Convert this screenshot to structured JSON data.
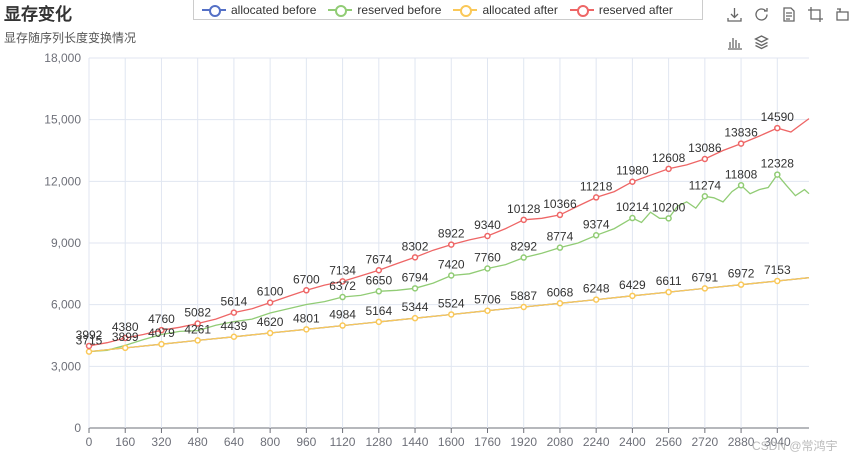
{
  "header": {
    "title": "显存变化",
    "subtitle": "显存随序列长度变换情况"
  },
  "toolbox": {
    "row1": [
      {
        "name": "download-icon"
      },
      {
        "name": "refresh-icon"
      },
      {
        "name": "data-view-icon"
      },
      {
        "name": "zoom-icon"
      },
      {
        "name": "zoom-reset-icon"
      }
    ],
    "row2": [
      {
        "name": "bar-chart-icon"
      },
      {
        "name": "stack-icon"
      }
    ]
  },
  "watermark": "CSDN @常鸿宇",
  "chart_data": {
    "type": "line",
    "xlim": [
      0,
      3180
    ],
    "ylim": [
      0,
      18000
    ],
    "xticks": [
      0,
      160,
      320,
      480,
      640,
      800,
      960,
      1120,
      1280,
      1440,
      1600,
      1760,
      1920,
      2080,
      2240,
      2400,
      2560,
      2720,
      2880,
      3040
    ],
    "xtick_labels": [
      "0",
      "160",
      "320",
      "480",
      "640",
      "800",
      "960",
      "1120",
      "1280",
      "1440",
      "1600",
      "1760",
      "1920",
      "2080",
      "2240",
      "2400",
      "2560",
      "2720",
      "2880",
      "3040"
    ],
    "yticks": [
      0,
      3000,
      6000,
      9000,
      12000,
      15000,
      18000
    ],
    "ytick_labels": [
      "0",
      "3,000",
      "6,000",
      "9,000",
      "12,000",
      "15,000",
      "18,000"
    ],
    "grid": true,
    "legend_position": "top",
    "series": [
      {
        "name": "allocated before",
        "color": "#5470c6",
        "points": [
          [
            0,
            3715
          ],
          [
            160,
            3899
          ],
          [
            320,
            4079
          ],
          [
            480,
            4261
          ],
          [
            640,
            4439
          ],
          [
            800,
            4620
          ],
          [
            960,
            4801
          ],
          [
            1120,
            4984
          ],
          [
            1280,
            5164
          ],
          [
            1440,
            5344
          ],
          [
            1600,
            5524
          ],
          [
            1760,
            5706
          ],
          [
            1920,
            5887
          ],
          [
            2080,
            6068
          ],
          [
            2240,
            6248
          ],
          [
            2400,
            6429
          ],
          [
            2560,
            6611
          ],
          [
            2720,
            6791
          ],
          [
            2880,
            6972
          ],
          [
            3040,
            7153
          ],
          [
            3180,
            7310
          ]
        ],
        "labels": []
      },
      {
        "name": "reserved before",
        "color": "#91cc75",
        "points": [
          [
            0,
            3715
          ],
          [
            80,
            3780
          ],
          [
            160,
            4020
          ],
          [
            240,
            4300
          ],
          [
            320,
            4550
          ],
          [
            400,
            4700
          ],
          [
            480,
            4740
          ],
          [
            560,
            5000
          ],
          [
            640,
            5178
          ],
          [
            720,
            5300
          ],
          [
            800,
            5596
          ],
          [
            880,
            5800
          ],
          [
            960,
            6006
          ],
          [
            1040,
            6150
          ],
          [
            1120,
            6372
          ],
          [
            1200,
            6450
          ],
          [
            1280,
            6650
          ],
          [
            1360,
            6700
          ],
          [
            1440,
            6794
          ],
          [
            1520,
            7050
          ],
          [
            1600,
            7420
          ],
          [
            1680,
            7500
          ],
          [
            1760,
            7760
          ],
          [
            1840,
            7950
          ],
          [
            1920,
            8292
          ],
          [
            2000,
            8500
          ],
          [
            2080,
            8774
          ],
          [
            2160,
            9000
          ],
          [
            2240,
            9374
          ],
          [
            2320,
            9700
          ],
          [
            2400,
            10214
          ],
          [
            2440,
            10000
          ],
          [
            2480,
            10500
          ],
          [
            2520,
            10200
          ],
          [
            2560,
            10200
          ],
          [
            2600,
            10800
          ],
          [
            2640,
            11000
          ],
          [
            2680,
            10700
          ],
          [
            2720,
            11274
          ],
          [
            2760,
            11200
          ],
          [
            2800,
            11000
          ],
          [
            2840,
            11500
          ],
          [
            2880,
            11808
          ],
          [
            2920,
            11400
          ],
          [
            2960,
            11600
          ],
          [
            3000,
            11700
          ],
          [
            3040,
            12328
          ],
          [
            3080,
            11800
          ],
          [
            3120,
            11300
          ],
          [
            3160,
            11600
          ],
          [
            3180,
            11400
          ]
        ],
        "labels": [
          [
            1120,
            6372
          ],
          [
            1280,
            6650
          ],
          [
            1440,
            6794
          ],
          [
            1600,
            7420
          ],
          [
            1760,
            7760
          ],
          [
            1920,
            8292
          ],
          [
            2080,
            8774
          ],
          [
            2240,
            9374
          ],
          [
            2400,
            10214
          ],
          [
            2560,
            10200
          ],
          [
            2720,
            11274
          ],
          [
            2880,
            11808
          ],
          [
            3040,
            12328
          ]
        ]
      },
      {
        "name": "allocated after",
        "color": "#fac858",
        "points": [
          [
            0,
            3715
          ],
          [
            160,
            3899
          ],
          [
            320,
            4079
          ],
          [
            480,
            4261
          ],
          [
            640,
            4439
          ],
          [
            800,
            4620
          ],
          [
            960,
            4801
          ],
          [
            1120,
            4984
          ],
          [
            1280,
            5164
          ],
          [
            1440,
            5344
          ],
          [
            1600,
            5524
          ],
          [
            1760,
            5706
          ],
          [
            1920,
            5887
          ],
          [
            2080,
            6068
          ],
          [
            2240,
            6248
          ],
          [
            2400,
            6429
          ],
          [
            2560,
            6611
          ],
          [
            2720,
            6791
          ],
          [
            2880,
            6972
          ],
          [
            3040,
            7153
          ],
          [
            3180,
            7310
          ]
        ],
        "labels": [
          [
            0,
            3715
          ],
          [
            160,
            3899
          ],
          [
            320,
            4079
          ],
          [
            480,
            4261
          ],
          [
            640,
            4439
          ],
          [
            800,
            4620
          ],
          [
            960,
            4801
          ],
          [
            1120,
            4984
          ],
          [
            1280,
            5164
          ],
          [
            1440,
            5344
          ],
          [
            1600,
            5524
          ],
          [
            1760,
            5706
          ],
          [
            1920,
            5887
          ],
          [
            2080,
            6068
          ],
          [
            2240,
            6248
          ],
          [
            2400,
            6429
          ],
          [
            2560,
            6611
          ],
          [
            2720,
            6791
          ],
          [
            2880,
            6972
          ],
          [
            3040,
            7153
          ]
        ]
      },
      {
        "name": "reserved after",
        "color": "#ee6666",
        "points": [
          [
            0,
            3992
          ],
          [
            80,
            4150
          ],
          [
            160,
            4380
          ],
          [
            240,
            4550
          ],
          [
            320,
            4760
          ],
          [
            400,
            4900
          ],
          [
            480,
            5082
          ],
          [
            560,
            5300
          ],
          [
            640,
            5614
          ],
          [
            720,
            5800
          ],
          [
            800,
            6100
          ],
          [
            880,
            6400
          ],
          [
            960,
            6700
          ],
          [
            1040,
            6950
          ],
          [
            1120,
            7134
          ],
          [
            1200,
            7400
          ],
          [
            1280,
            7674
          ],
          [
            1360,
            8000
          ],
          [
            1440,
            8302
          ],
          [
            1520,
            8650
          ],
          [
            1600,
            8922
          ],
          [
            1680,
            9150
          ],
          [
            1760,
            9340
          ],
          [
            1840,
            9700
          ],
          [
            1920,
            10128
          ],
          [
            2000,
            10200
          ],
          [
            2080,
            10366
          ],
          [
            2160,
            10800
          ],
          [
            2240,
            11218
          ],
          [
            2320,
            11500
          ],
          [
            2400,
            11980
          ],
          [
            2480,
            12300
          ],
          [
            2560,
            12608
          ],
          [
            2640,
            12800
          ],
          [
            2720,
            13086
          ],
          [
            2800,
            13500
          ],
          [
            2880,
            13836
          ],
          [
            2960,
            14200
          ],
          [
            3040,
            14590
          ],
          [
            3100,
            14400
          ],
          [
            3180,
            15050
          ]
        ],
        "labels": [
          [
            0,
            3992
          ],
          [
            160,
            4380
          ],
          [
            320,
            4760
          ],
          [
            480,
            5082
          ],
          [
            640,
            5614
          ],
          [
            800,
            6100
          ],
          [
            960,
            6700
          ],
          [
            1120,
            7134
          ],
          [
            1280,
            7674
          ],
          [
            1440,
            8302
          ],
          [
            1600,
            8922
          ],
          [
            1760,
            9340
          ],
          [
            1920,
            10128
          ],
          [
            2080,
            10366
          ],
          [
            2240,
            11218
          ],
          [
            2400,
            11980
          ],
          [
            2560,
            12608
          ],
          [
            2720,
            13086
          ],
          [
            2880,
            13836
          ],
          [
            3040,
            14590
          ]
        ]
      }
    ]
  }
}
